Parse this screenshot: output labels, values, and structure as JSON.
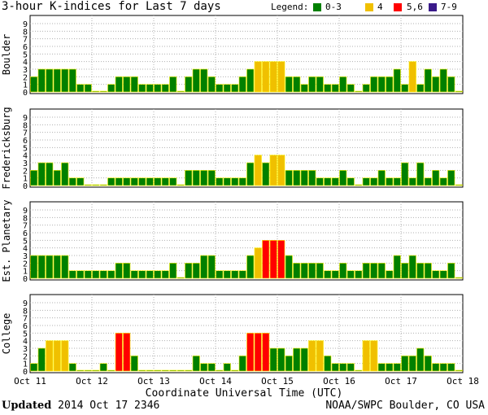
{
  "chart_data": {
    "type": "bar",
    "title": "3-hour K-indices for Last 7 days",
    "legend": {
      "label": "Legend:",
      "items": [
        {
          "label": "0-3",
          "color": "#008000"
        },
        {
          "label": "4",
          "color": "#f0c000"
        },
        {
          "label": "5,6",
          "color": "#ff0000"
        },
        {
          "label": "7-9",
          "color": "#3a1a8a"
        }
      ]
    },
    "xlabel": "Coordinate Universal Time (UTC)",
    "x_ticks": [
      "Oct 11",
      "Oct 12",
      "Oct 13",
      "Oct 14",
      "Oct 15",
      "Oct 16",
      "Oct 17",
      "Oct 18"
    ],
    "y_ticks": [
      "0",
      "1",
      "2",
      "3",
      "4",
      "5",
      "6",
      "7",
      "8",
      "9"
    ],
    "ylim": [
      0,
      9
    ],
    "grid": true,
    "panels": [
      {
        "name": "Boulder",
        "values": [
          2,
          3,
          3,
          3,
          3,
          3,
          1,
          1,
          0,
          0,
          1,
          2,
          2,
          2,
          1,
          1,
          1,
          1,
          2,
          0,
          2,
          3,
          3,
          2,
          1,
          1,
          1,
          2,
          3,
          4,
          4,
          4,
          4,
          2,
          2,
          1,
          2,
          2,
          1,
          1,
          2,
          1,
          0,
          1,
          2,
          2,
          2,
          3,
          1,
          4,
          1,
          3,
          2,
          3,
          2,
          0
        ]
      },
      {
        "name": "Fredericksburg",
        "values": [
          2,
          3,
          3,
          2,
          3,
          1,
          1,
          0,
          0,
          0,
          1,
          1,
          1,
          1,
          1,
          1,
          1,
          1,
          1,
          0,
          2,
          2,
          2,
          2,
          1,
          1,
          1,
          1,
          3,
          4,
          3,
          4,
          4,
          2,
          2,
          2,
          2,
          1,
          1,
          1,
          2,
          1,
          0,
          1,
          1,
          2,
          1,
          1,
          3,
          1,
          3,
          1,
          2,
          1,
          2,
          0
        ]
      },
      {
        "name": "Est. Planetary",
        "values": [
          3,
          3,
          3,
          3,
          3,
          1,
          1,
          1,
          1,
          1,
          1,
          2,
          2,
          1,
          1,
          1,
          1,
          1,
          2,
          0,
          2,
          2,
          3,
          3,
          1,
          1,
          1,
          1,
          3,
          4,
          5,
          5,
          5,
          3,
          2,
          2,
          2,
          2,
          1,
          1,
          2,
          1,
          1,
          2,
          2,
          2,
          1,
          3,
          2,
          3,
          2,
          2,
          1,
          1,
          2,
          0
        ]
      },
      {
        "name": "College",
        "values": [
          1,
          3,
          4,
          4,
          4,
          1,
          0,
          0,
          0,
          1,
          0,
          5,
          5,
          2,
          0,
          0,
          0,
          0,
          0,
          0,
          0,
          2,
          1,
          1,
          0,
          1,
          0,
          2,
          5,
          5,
          5,
          3,
          3,
          2,
          3,
          3,
          4,
          4,
          2,
          1,
          1,
          1,
          0,
          4,
          4,
          1,
          1,
          1,
          2,
          2,
          3,
          2,
          1,
          1,
          1,
          0
        ]
      }
    ]
  },
  "footer": {
    "updated_label": "Updated",
    "updated_value": "2014 Oct 17 2346",
    "source": "NOAA/SWPC Boulder, CO USA"
  }
}
